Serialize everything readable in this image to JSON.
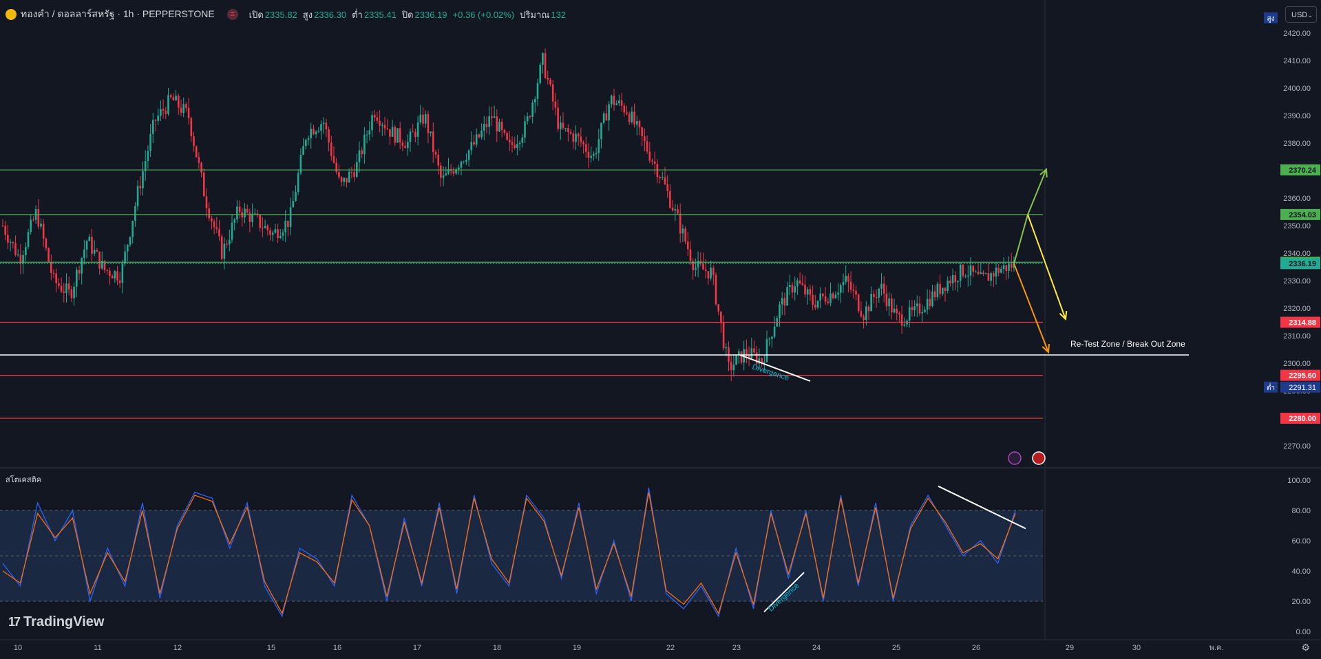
{
  "header": {
    "symbol": "ทองคำ / ดอลลาร์สหรัฐ · 1h · PEPPERSTONE",
    "open_label": "เปิด",
    "open": "2335.82",
    "high_label": "สูง",
    "high": "2336.30",
    "low_label": "ต่ำ",
    "low": "2335.41",
    "close_label": "ปิด",
    "close": "2336.19",
    "change": "+0.36 (+0.02%)",
    "volume_label": "ปริมาณ",
    "volume": "132"
  },
  "currency": "USD",
  "brand": "TradingView",
  "colors": {
    "background": "#131722",
    "up": "#22ab94",
    "down": "#f23645",
    "support": "#f23645",
    "resistance": "#4caf50",
    "zone": "#ffffff",
    "stoch_k": "#2962ff",
    "stoch_d": "#ff6d00"
  },
  "chart_data": [
    {
      "type": "candlestick",
      "title": "ทองคำ / ดอลลาร์สหรัฐ · 1h · PEPPERSTONE",
      "x_ticks": [
        "10",
        "11",
        "12",
        "15",
        "16",
        "17",
        "18",
        "19",
        "22",
        "23",
        "24",
        "25",
        "26",
        "29",
        "30",
        "พ.ค."
      ],
      "y_ticks": [
        2270,
        2280,
        2290,
        2300,
        2310,
        2320,
        2330,
        2340,
        2350,
        2360,
        2370,
        2380,
        2390,
        2400,
        2410,
        2420
      ],
      "ylim": [
        2262,
        2432
      ],
      "high_marker": {
        "label": "สูง"
      },
      "low_marker": {
        "label": "ต่ำ",
        "value": 2291.31
      },
      "levels": [
        {
          "value": 2370.24,
          "color": "#4caf50",
          "label": "2370.24"
        },
        {
          "value": 2354.03,
          "color": "#4caf50",
          "label": "2354.03"
        },
        {
          "value": 2336.69,
          "color": "#4caf50",
          "label": "2336.69"
        },
        {
          "value": 2336.19,
          "color": "#22ab94",
          "label": "2336.19",
          "dotted": true
        },
        {
          "value": 2314.88,
          "color": "#f23645",
          "label": "2314.88"
        },
        {
          "value": 2303.0,
          "color": "#ffffff",
          "label": ""
        },
        {
          "value": 2295.6,
          "color": "#f23645",
          "label": "2295.60"
        },
        {
          "value": 2280.0,
          "color": "#f23645",
          "label": "2280.00"
        }
      ],
      "annotations": [
        "Re-Test Zone / Break Out Zone",
        "Divergence"
      ],
      "series_path": [
        [
          0,
          2350
        ],
        [
          1,
          2338
        ],
        [
          2,
          2355
        ],
        [
          3,
          2330
        ],
        [
          4,
          2325
        ],
        [
          5,
          2345
        ],
        [
          6,
          2334
        ],
        [
          7,
          2332
        ],
        [
          8,
          2362
        ],
        [
          9,
          2388
        ],
        [
          10,
          2396
        ],
        [
          11,
          2390
        ],
        [
          12,
          2360
        ],
        [
          13,
          2340
        ],
        [
          14,
          2356
        ],
        [
          15,
          2352
        ],
        [
          16,
          2347
        ],
        [
          17,
          2352
        ],
        [
          18,
          2384
        ],
        [
          19,
          2388
        ],
        [
          20,
          2364
        ],
        [
          21,
          2372
        ],
        [
          22,
          2392
        ],
        [
          23,
          2384
        ],
        [
          24,
          2380
        ],
        [
          25,
          2390
        ],
        [
          26,
          2366
        ],
        [
          27,
          2373
        ],
        [
          28,
          2380
        ],
        [
          29,
          2390
        ],
        [
          30,
          2378
        ],
        [
          31,
          2386
        ],
        [
          32,
          2410
        ],
        [
          33,
          2385
        ],
        [
          34,
          2382
        ],
        [
          35,
          2375
        ],
        [
          36,
          2396
        ],
        [
          37,
          2392
        ],
        [
          38,
          2380
        ],
        [
          39,
          2368
        ],
        [
          40,
          2352
        ],
        [
          41,
          2335
        ],
        [
          42,
          2333
        ],
        [
          43,
          2298
        ],
        [
          44,
          2304
        ],
        [
          45,
          2301
        ],
        [
          46,
          2320
        ],
        [
          47,
          2330
        ],
        [
          48,
          2322
        ],
        [
          49,
          2325
        ],
        [
          50,
          2330
        ],
        [
          51,
          2318
        ],
        [
          52,
          2328
        ],
        [
          53,
          2316
        ],
        [
          54,
          2318
        ],
        [
          55,
          2324
        ],
        [
          56,
          2330
        ],
        [
          57,
          2334
        ],
        [
          58,
          2330
        ],
        [
          59,
          2334
        ],
        [
          60,
          2336
        ]
      ]
    },
    {
      "type": "line",
      "title": "สโตเคสติค",
      "y_ticks": [
        0,
        20,
        40,
        60,
        80,
        100
      ],
      "ylim": [
        0,
        100
      ],
      "bands": [
        20,
        50,
        80
      ],
      "series": [
        {
          "color": "#2962ff",
          "values": [
            45,
            30,
            85,
            60,
            80,
            20,
            55,
            30,
            85,
            22,
            70,
            92,
            88,
            55,
            85,
            30,
            10,
            55,
            48,
            30,
            90,
            70,
            20,
            75,
            30,
            85,
            25,
            90,
            45,
            30,
            90,
            75,
            35,
            85,
            25,
            60,
            20,
            95,
            25,
            15,
            30,
            10,
            55,
            15,
            80,
            35,
            80,
            20,
            90,
            30,
            85,
            20,
            70,
            90,
            70,
            50,
            60,
            45,
            80
          ]
        },
        {
          "color": "#ff6d00",
          "values": [
            40,
            32,
            78,
            62,
            75,
            25,
            52,
            33,
            80,
            25,
            68,
            90,
            86,
            58,
            82,
            33,
            12,
            52,
            46,
            32,
            87,
            70,
            23,
            72,
            32,
            82,
            28,
            88,
            48,
            32,
            88,
            73,
            37,
            82,
            28,
            58,
            23,
            92,
            27,
            18,
            32,
            12,
            52,
            18,
            78,
            38,
            78,
            22,
            88,
            32,
            82,
            22,
            68,
            88,
            72,
            52,
            58,
            48,
            78
          ]
        }
      ]
    }
  ]
}
